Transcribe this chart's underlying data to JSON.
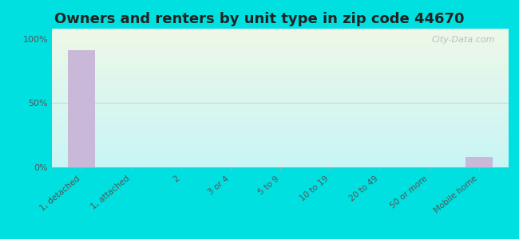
{
  "title": "Owners and renters by unit type in zip code 44670",
  "categories": [
    "1, detached",
    "1, attached",
    "2",
    "3 or 4",
    "5 to 9",
    "10 to 19",
    "20 to 49",
    "50 or more",
    "Mobile home"
  ],
  "values": [
    91,
    0,
    0,
    0,
    0,
    0,
    0,
    0,
    8
  ],
  "bar_color": "#c9b8d8",
  "background_outer": "#00e0e0",
  "background_inner_top": "#eef8e8",
  "background_inner_bottom": "#c8f5f5",
  "title_fontsize": 13,
  "ylabel_ticks": [
    "0%",
    "50%",
    "100%"
  ],
  "ylabel_values": [
    0,
    50,
    100
  ],
  "ylim": [
    0,
    108
  ],
  "watermark": "City-Data.com",
  "gridline_color": "#e8a0a0",
  "gridline_alpha": 0.5
}
